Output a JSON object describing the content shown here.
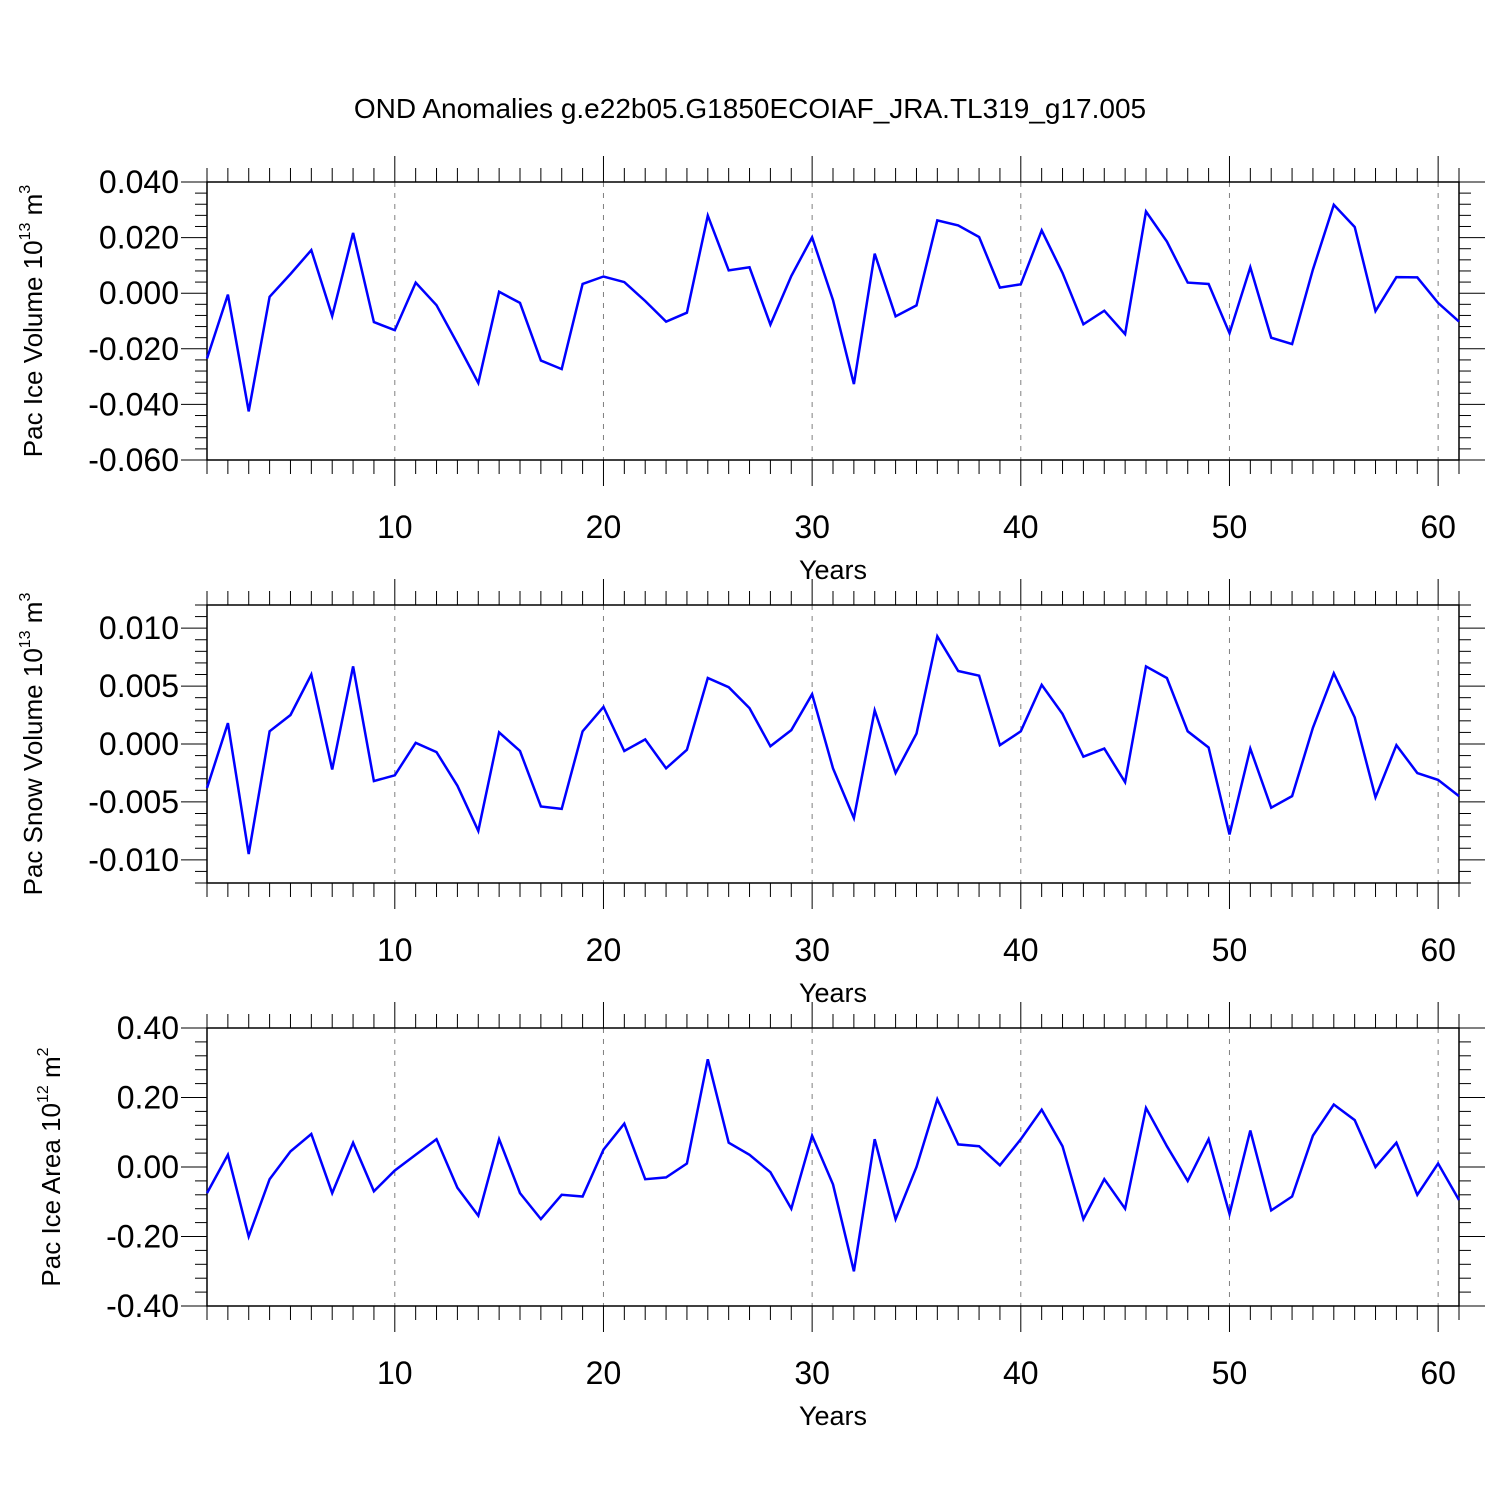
{
  "title": "OND Anomalies g.e22b05.G1850ECOIAF_JRA.TL319_g17.005",
  "colors": {
    "line": "#0000ff",
    "axis": "#000000",
    "grid": "#808080"
  },
  "chart_data": [
    {
      "type": "line",
      "ylabel_main": "Pac Ice Volume 10",
      "ylabel_exp": "13",
      "ylabel_unit": " m",
      "ylabel_unit_exp": "3",
      "xlabel": "Years",
      "xlim": [
        1,
        61
      ],
      "ylim": [
        -0.06,
        0.04
      ],
      "xticks": [
        10,
        20,
        30,
        40,
        50,
        60
      ],
      "xtick_labels": [
        "10",
        "20",
        "30",
        "40",
        "50",
        "60"
      ],
      "yticks": [
        0.04,
        0.02,
        0.0,
        -0.02,
        -0.04,
        -0.06
      ],
      "ytick_labels": [
        "0.040",
        "0.020",
        "0.000",
        "-0.020",
        "-0.040",
        "-0.060"
      ],
      "grid": "vertical dashed at major x ticks",
      "series": [
        {
          "x": [
            1,
            2,
            3,
            4,
            5,
            6,
            7,
            8,
            9,
            10,
            11,
            12,
            13,
            14,
            15,
            16,
            17,
            18,
            19,
            20,
            21,
            22,
            23,
            24,
            25,
            26,
            27,
            28,
            29,
            30,
            31,
            32,
            33,
            34,
            35,
            36,
            37,
            38,
            39,
            40,
            41,
            42,
            43,
            44,
            45,
            46,
            47,
            48,
            49,
            50,
            51,
            52,
            53,
            54,
            55,
            56,
            57,
            58,
            59,
            60,
            61
          ],
          "values": [
            -0.0235,
            -0.0005,
            -0.0425,
            -0.0013,
            0.0069,
            0.0155,
            -0.0082,
            0.0217,
            -0.0104,
            -0.0133,
            0.0038,
            -0.0043,
            -0.0181,
            -0.0323,
            0.0005,
            -0.0035,
            -0.0242,
            -0.0273,
            0.0033,
            0.006,
            0.004,
            -0.0028,
            -0.0102,
            -0.007,
            0.0279,
            0.0082,
            0.0093,
            -0.0113,
            0.0062,
            0.0201,
            -0.0025,
            -0.0327,
            0.0142,
            -0.0083,
            -0.0044,
            0.0262,
            0.0244,
            0.0202,
            0.002,
            0.0032,
            0.0226,
            0.0073,
            -0.0112,
            -0.0063,
            -0.0147,
            0.0294,
            0.0186,
            0.0038,
            0.0033,
            -0.0144,
            0.0093,
            -0.016,
            -0.0183,
            0.0085,
            0.0318,
            0.0238,
            -0.0064,
            0.0058,
            0.0057,
            -0.0035,
            -0.0102
          ]
        }
      ]
    },
    {
      "type": "line",
      "ylabel_main": "Pac Snow Volume 10",
      "ylabel_exp": "13",
      "ylabel_unit": " m",
      "ylabel_unit_exp": "3",
      "xlabel": "Years",
      "xlim": [
        1,
        61
      ],
      "ylim": [
        -0.012,
        0.012
      ],
      "xticks": [
        10,
        20,
        30,
        40,
        50,
        60
      ],
      "xtick_labels": [
        "10",
        "20",
        "30",
        "40",
        "50",
        "60"
      ],
      "yticks": [
        0.01,
        0.005,
        0.0,
        -0.005,
        -0.01
      ],
      "ytick_labels": [
        "0.010",
        "0.005",
        "0.000",
        "-0.005",
        "-0.010"
      ],
      "grid": "vertical dashed at major x ticks",
      "series": [
        {
          "x": [
            1,
            2,
            3,
            4,
            5,
            6,
            7,
            8,
            9,
            10,
            11,
            12,
            13,
            14,
            15,
            16,
            17,
            18,
            19,
            20,
            21,
            22,
            23,
            24,
            25,
            26,
            27,
            28,
            29,
            30,
            31,
            32,
            33,
            34,
            35,
            36,
            37,
            38,
            39,
            40,
            41,
            42,
            43,
            44,
            45,
            46,
            47,
            48,
            49,
            50,
            51,
            52,
            53,
            54,
            55,
            56,
            57,
            58,
            59,
            60,
            61
          ],
          "values": [
            -0.0038,
            0.0018,
            -0.0095,
            0.0011,
            0.0025,
            0.006,
            -0.0022,
            0.0067,
            -0.0032,
            -0.0027,
            0.0001,
            -0.0007,
            -0.0036,
            -0.0075,
            0.001,
            -0.0006,
            -0.0054,
            -0.0056,
            0.0011,
            0.0032,
            -0.0006,
            0.0004,
            -0.0021,
            -0.0005,
            0.0057,
            0.0049,
            0.0031,
            -0.0002,
            0.0012,
            0.0043,
            -0.0021,
            -0.0064,
            0.0029,
            -0.0025,
            0.0009,
            0.0093,
            0.0063,
            0.0059,
            -0.0001,
            0.0011,
            0.0051,
            0.0026,
            -0.0011,
            -0.0004,
            -0.0033,
            0.0067,
            0.0057,
            0.0011,
            -0.0003,
            -0.0078,
            -0.0004,
            -0.0055,
            -0.0045,
            0.0014,
            0.0061,
            0.0023,
            -0.0046,
            -0.0001,
            -0.0025,
            -0.0031,
            -0.0045
          ]
        }
      ]
    },
    {
      "type": "line",
      "ylabel_main": "Pac Ice Area 10",
      "ylabel_exp": "12",
      "ylabel_unit": " m",
      "ylabel_unit_exp": "2",
      "xlabel": "Years",
      "xlim": [
        1,
        61
      ],
      "ylim": [
        -0.4,
        0.4
      ],
      "xticks": [
        10,
        20,
        30,
        40,
        50,
        60
      ],
      "xtick_labels": [
        "10",
        "20",
        "30",
        "40",
        "50",
        "60"
      ],
      "yticks": [
        0.4,
        0.2,
        0.0,
        -0.2,
        -0.4
      ],
      "ytick_labels": [
        "0.40",
        "0.20",
        "0.00",
        "-0.20",
        "-0.40"
      ],
      "grid": "vertical dashed at major x ticks",
      "series": [
        {
          "x": [
            1,
            2,
            3,
            4,
            5,
            6,
            7,
            8,
            9,
            10,
            11,
            12,
            13,
            14,
            15,
            16,
            17,
            18,
            19,
            20,
            21,
            22,
            23,
            24,
            25,
            26,
            27,
            28,
            29,
            30,
            31,
            32,
            33,
            34,
            35,
            36,
            37,
            38,
            39,
            40,
            41,
            42,
            43,
            44,
            45,
            46,
            47,
            48,
            49,
            50,
            51,
            52,
            53,
            54,
            55,
            56,
            57,
            58,
            59,
            60,
            61
          ],
          "values": [
            -0.075,
            0.035,
            -0.2,
            -0.035,
            0.045,
            0.095,
            -0.075,
            0.07,
            -0.07,
            -0.01,
            0.035,
            0.08,
            -0.06,
            -0.14,
            0.08,
            -0.075,
            -0.15,
            -0.08,
            -0.085,
            0.05,
            0.125,
            -0.035,
            -0.03,
            0.01,
            0.31,
            0.07,
            0.035,
            -0.015,
            -0.12,
            0.09,
            -0.05,
            -0.3,
            0.08,
            -0.15,
            0.0,
            0.195,
            0.065,
            0.06,
            0.005,
            0.08,
            0.165,
            0.06,
            -0.15,
            -0.035,
            -0.12,
            0.17,
            0.06,
            -0.04,
            0.08,
            -0.135,
            0.105,
            -0.125,
            -0.085,
            0.09,
            0.18,
            0.135,
            0.0,
            0.07,
            -0.08,
            0.01,
            -0.095
          ]
        }
      ]
    }
  ]
}
